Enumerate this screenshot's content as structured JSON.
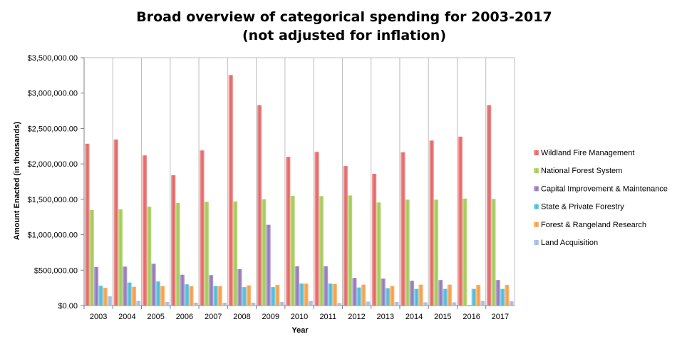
{
  "chart_data": {
    "type": "bar",
    "title_lines": [
      "Broad overview of categorical spending for 2003-2017",
      "(not adjusted for inflation)"
    ],
    "xlabel": "Year",
    "ylabel": "Amount Enacted (in thousands)",
    "ylim": [
      0,
      3500000
    ],
    "y_ticks": [
      0,
      500000,
      1000000,
      1500000,
      2000000,
      2500000,
      3000000,
      3500000
    ],
    "y_tick_labels": [
      "$0.00",
      "$500,000.00",
      "$1,000,000.00",
      "$1,500,000.00",
      "$2,000,000.00",
      "$2,500,000.00",
      "$3,000,000.00",
      "$3,500,000.00"
    ],
    "grid": "vertical gridlines between year groups",
    "legend_position": "right",
    "categories": [
      "2003",
      "2004",
      "2005",
      "2006",
      "2007",
      "2008",
      "2009",
      "2010",
      "2011",
      "2012",
      "2013",
      "2014",
      "2015",
      "2016",
      "2017"
    ],
    "series": [
      {
        "name": "Wildland Fire Management",
        "color": "#e5605f",
        "values": [
          2285000,
          2345000,
          2120000,
          1840000,
          2190000,
          3255000,
          2830000,
          2100000,
          2170000,
          1970000,
          1860000,
          2165000,
          2330000,
          2385000,
          2830000
        ]
      },
      {
        "name": "National Forest System",
        "color": "#9fc84f",
        "values": [
          1350000,
          1360000,
          1395000,
          1450000,
          1465000,
          1470000,
          1500000,
          1550000,
          1545000,
          1555000,
          1455000,
          1495000,
          1495000,
          1510000,
          1505000
        ]
      },
      {
        "name": "Capital Improvement & Maintenance",
        "color": "#8f74b8",
        "values": [
          545000,
          550000,
          590000,
          435000,
          430000,
          515000,
          1140000,
          555000,
          555000,
          390000,
          380000,
          350000,
          360000,
          0,
          360000
        ]
      },
      {
        "name": "State & Private Forestry",
        "color": "#45b8d8",
        "values": [
          280000,
          325000,
          340000,
          300000,
          275000,
          260000,
          260000,
          310000,
          310000,
          255000,
          245000,
          235000,
          235000,
          235000,
          235000
        ]
      },
      {
        "name": "Forest & Rangeland Research",
        "color": "#f79a3e",
        "values": [
          250000,
          265000,
          275000,
          275000,
          275000,
          285000,
          290000,
          310000,
          305000,
          295000,
          275000,
          295000,
          295000,
          290000,
          290000
        ]
      },
      {
        "name": "Land Acquisition",
        "color": "#9db9df",
        "values": [
          130000,
          65000,
          50000,
          40000,
          40000,
          40000,
          50000,
          65000,
          35000,
          55000,
          50000,
          45000,
          45000,
          65000,
          60000
        ]
      }
    ]
  }
}
